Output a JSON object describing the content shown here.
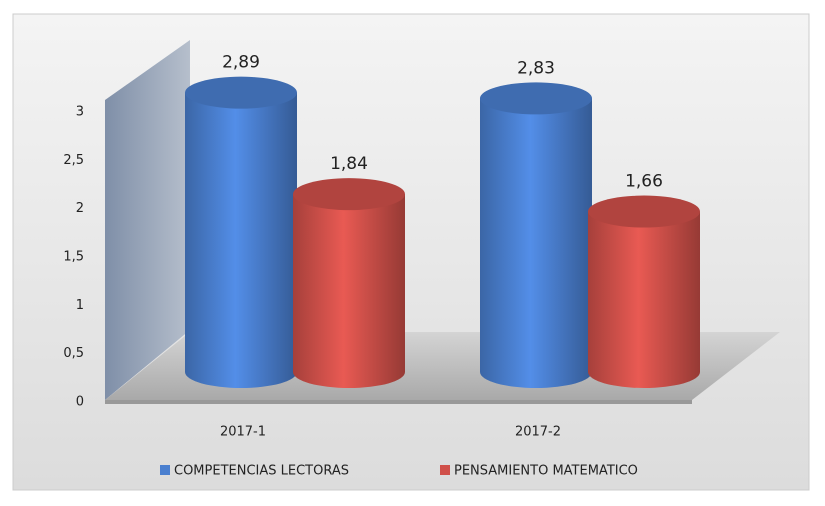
{
  "chart_data": {
    "type": "bar3d",
    "categories": [
      "2017-1",
      "2017-2"
    ],
    "series": [
      {
        "name": "COMPETENCIAS LECTORAS",
        "color": "#4a7fcf",
        "values": [
          2.89,
          2.83
        ],
        "value_labels": [
          "2,89",
          "2,83"
        ]
      },
      {
        "name": "PENSAMIENTO MATEMATICO",
        "color": "#d0504a",
        "values": [
          1.84,
          1.66
        ],
        "value_labels": [
          "1,84",
          "1,66"
        ]
      }
    ],
    "ylim": [
      0,
      3
    ],
    "yticks": [
      0,
      {
        "value": 0.5,
        "label": "0,5"
      },
      1,
      {
        "value": 1.5,
        "label": "1,5"
      },
      2,
      {
        "value": 2.5,
        "label": "2,5"
      },
      3
    ],
    "legend": "bottom"
  }
}
